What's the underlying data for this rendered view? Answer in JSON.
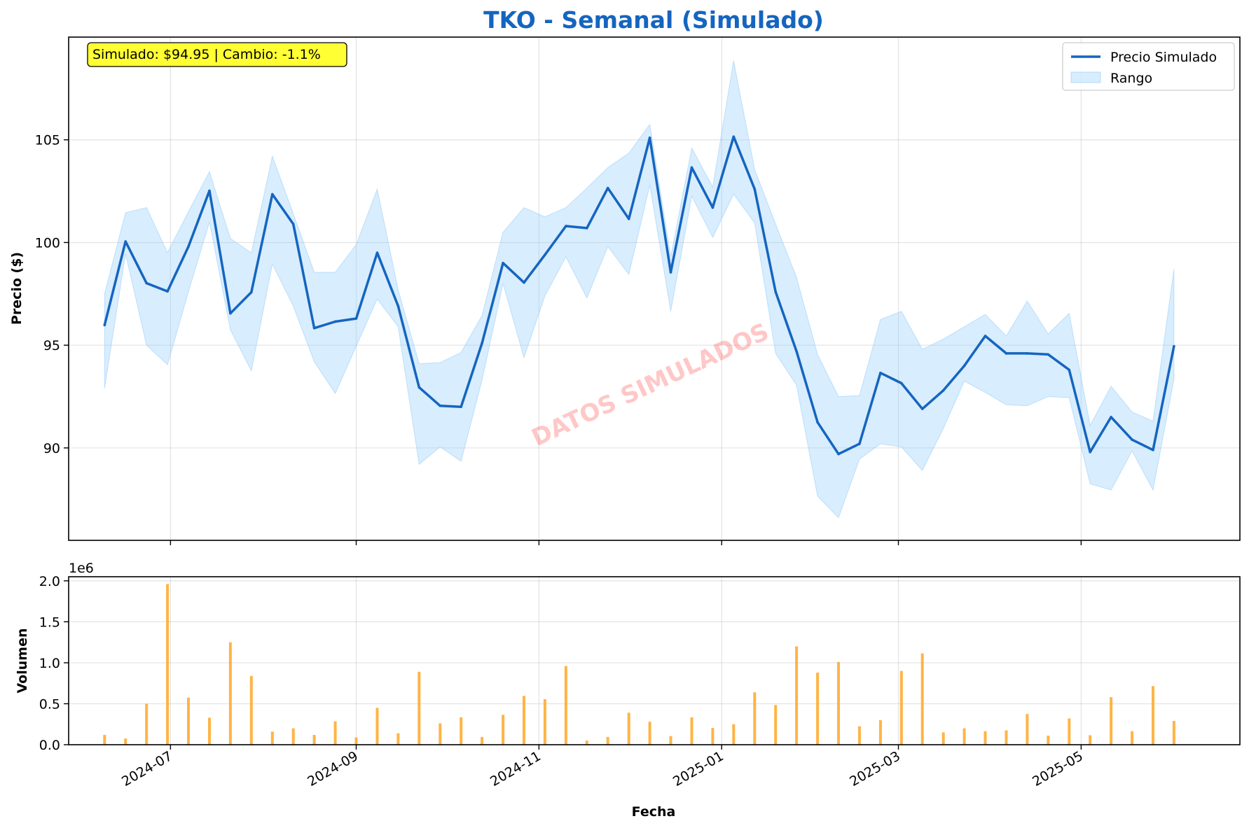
{
  "chart_data": [
    {
      "type": "line",
      "title": "TKO - Semanal (Simulado)",
      "xlabel": "",
      "ylabel": "Precio ($)",
      "ylim": [
        85.5,
        110
      ],
      "yticks": [
        90,
        95,
        100,
        105
      ],
      "xlim": [
        "2024-05-28",
        "2025-06-23"
      ],
      "xticks": [
        {
          "date": "2024-07-01",
          "label": "2024-07"
        },
        {
          "date": "2024-09-01",
          "label": "2024-09"
        },
        {
          "date": "2024-11-01",
          "label": "2024-11"
        },
        {
          "date": "2025-01-01",
          "label": "2025-01"
        },
        {
          "date": "2025-03-01",
          "label": "2025-03"
        },
        {
          "date": "2025-05-01",
          "label": "2025-05"
        }
      ],
      "grid": true,
      "legend_position": "top-right",
      "annotation": "Simulado: $94.95 | Cambio: -1.1%",
      "watermark": "DATOS SIMULADOS",
      "start_date": "2024-06-09",
      "interval_days": 7,
      "series": [
        {
          "name": "Precio Simulado",
          "kind": "line",
          "color": "#1565c0",
          "values": [
            95.98,
            100.05,
            98.02,
            97.62,
            99.8,
            102.52,
            96.55,
            97.58,
            102.35,
            100.9,
            95.83,
            96.15,
            96.3,
            99.5,
            96.9,
            92.95,
            92.05,
            92.0,
            95.1,
            99.0,
            98.05,
            99.4,
            100.8,
            100.7,
            102.65,
            101.15,
            105.1,
            98.55,
            103.65,
            101.7,
            105.15,
            102.6,
            97.6,
            94.7,
            91.25,
            89.7,
            90.2,
            93.65,
            93.15,
            91.9,
            92.8,
            94.0,
            95.45,
            94.6,
            94.6,
            94.55,
            93.8,
            89.8,
            91.5,
            90.4,
            89.9,
            94.95
          ]
        },
        {
          "name": "Rango",
          "kind": "band",
          "color": "#90caf9",
          "upper": [
            97.5,
            101.45,
            101.7,
            99.5,
            101.5,
            103.45,
            100.2,
            99.5,
            104.2,
            101.4,
            98.55,
            98.55,
            99.9,
            102.6,
            97.7,
            94.1,
            94.15,
            94.65,
            96.45,
            100.5,
            101.7,
            101.25,
            101.7,
            102.65,
            103.65,
            104.35,
            105.75,
            99.3,
            104.6,
            102.7,
            108.85,
            103.55,
            100.9,
            98.3,
            94.55,
            92.5,
            92.55,
            96.25,
            96.65,
            94.8,
            95.3,
            95.9,
            96.5,
            95.45,
            97.15,
            95.55,
            96.55,
            91.1,
            93.0,
            91.75,
            91.3,
            98.7
          ],
          "lower": [
            92.9,
            99.45,
            95.0,
            94.05,
            97.6,
            101.0,
            95.75,
            93.75,
            98.95,
            96.9,
            94.2,
            92.65,
            94.95,
            97.25,
            95.9,
            89.2,
            90.05,
            89.35,
            93.3,
            98.0,
            94.4,
            97.4,
            99.3,
            97.3,
            99.8,
            98.45,
            102.8,
            96.65,
            102.25,
            100.25,
            102.35,
            100.95,
            94.6,
            93.05,
            87.65,
            86.6,
            89.45,
            90.2,
            90.05,
            88.9,
            90.95,
            93.25,
            92.7,
            92.1,
            92.05,
            92.5,
            92.45,
            88.25,
            87.95,
            89.85,
            87.95,
            93.35
          ]
        }
      ]
    },
    {
      "type": "bar",
      "xlabel": "Fecha",
      "ylabel": "Volumen",
      "offset_label": "1e6",
      "ylim": [
        0,
        2050000
      ],
      "yticks": [
        0,
        500000,
        1000000,
        1500000,
        2000000
      ],
      "ytick_labels": [
        "0.0",
        "0.5",
        "1.0",
        "1.5",
        "2.0"
      ],
      "bar_color": "#ffa726",
      "values": [
        120000,
        75000,
        500000,
        1960000,
        575000,
        330000,
        1250000,
        840000,
        160000,
        200000,
        120000,
        285000,
        90000,
        450000,
        140000,
        890000,
        260000,
        335000,
        95000,
        365000,
        595000,
        555000,
        960000,
        50000,
        95000,
        390000,
        280000,
        105000,
        335000,
        205000,
        250000,
        640000,
        485000,
        1200000,
        880000,
        1010000,
        225000,
        300000,
        900000,
        1115000,
        150000,
        200000,
        165000,
        175000,
        375000,
        110000,
        320000,
        115000,
        580000,
        165000,
        715000,
        290000
      ]
    }
  ]
}
